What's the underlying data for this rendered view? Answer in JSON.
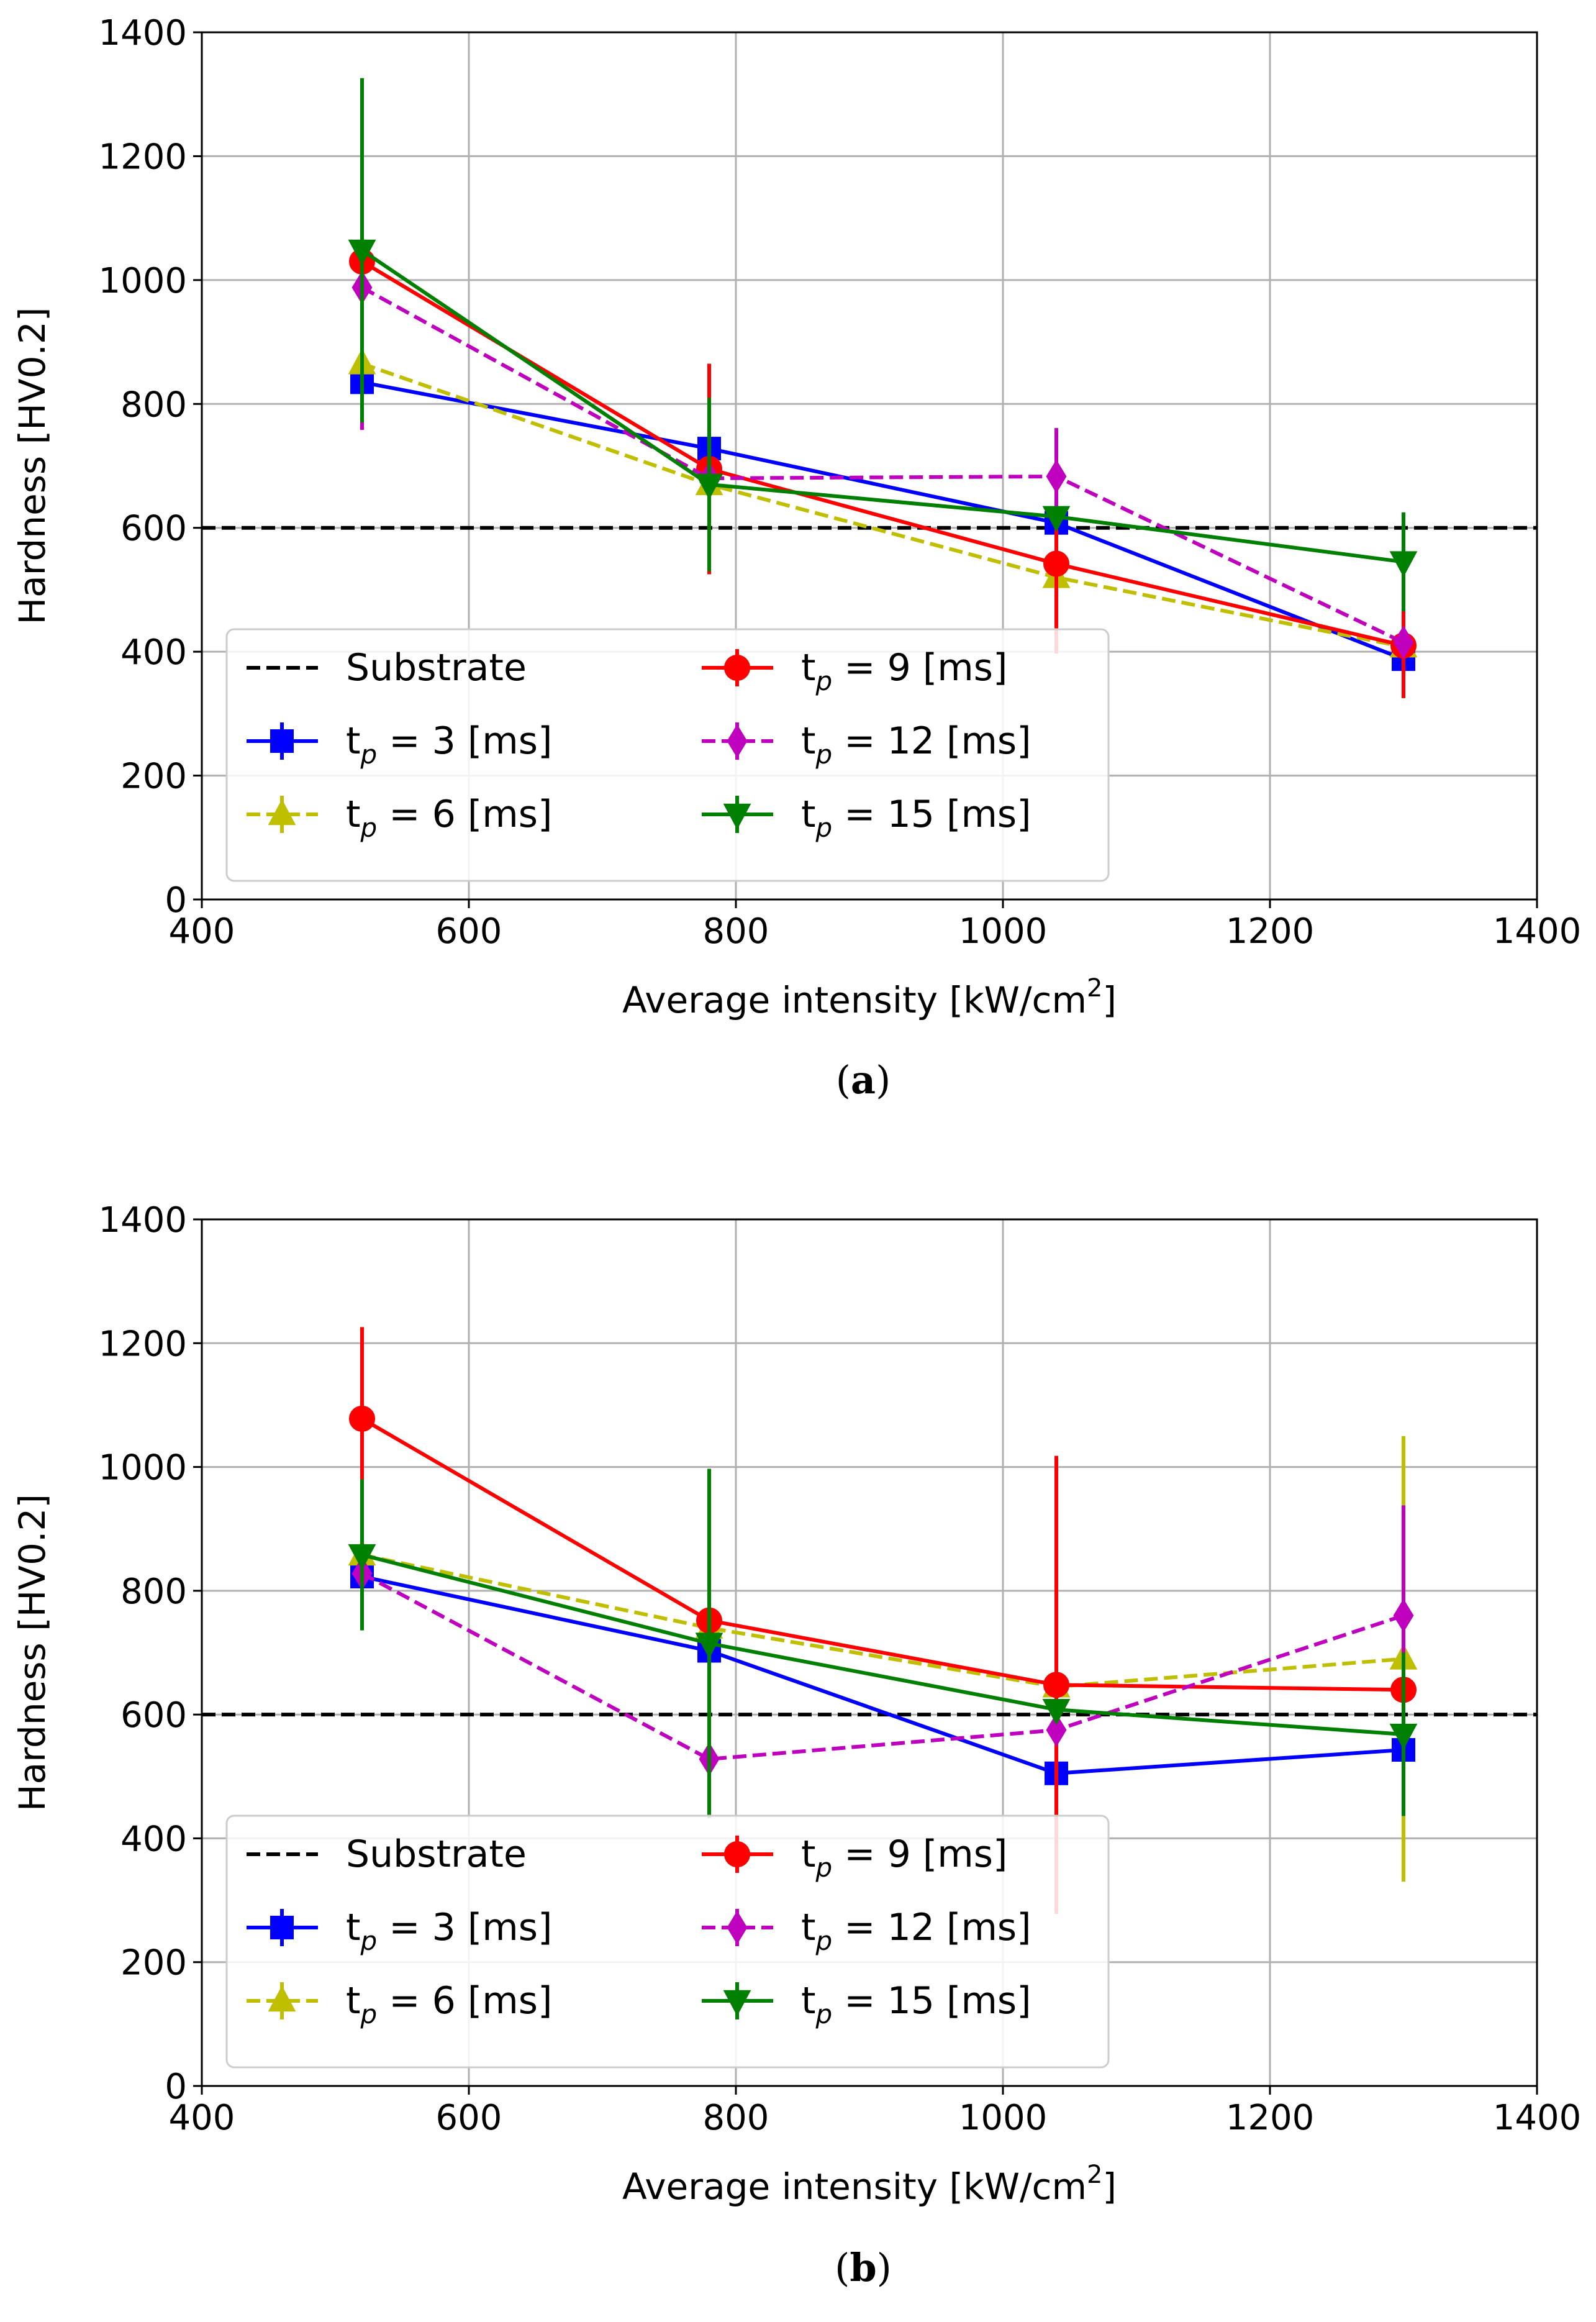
{
  "chart_data": [
    {
      "type": "line",
      "panel_label": "a",
      "title": "",
      "xlabel": "Average intensity [kW/cm",
      "xlabel_sup": "2",
      "xlabel_end": "]",
      "ylabel": "Hardness [HV0.2]",
      "xlim": [
        400,
        1400
      ],
      "ylim": [
        0,
        1400
      ],
      "xticks": [
        400,
        600,
        800,
        1000,
        1200,
        1400
      ],
      "yticks": [
        0,
        200,
        400,
        600,
        800,
        1000,
        1200,
        1400
      ],
      "grid": true,
      "legend_position": "lower-left",
      "reference_line": {
        "name": "Substrate",
        "value": 600,
        "color": "#000000",
        "style": "dashed"
      },
      "series": [
        {
          "name": "t",
          "sub": "p",
          "suffix": " = 3 [ms]",
          "color": "#0000ff",
          "marker": "square",
          "dashed": false,
          "x": [
            520,
            780,
            1040,
            1300
          ],
          "y": [
            835,
            728,
            608,
            388
          ],
          "err": [
            0,
            0,
            0,
            0
          ]
        },
        {
          "name": "t",
          "sub": "p",
          "suffix": " = 6 [ms]",
          "color": "#bfbf00",
          "marker": "triangle-up",
          "dashed": true,
          "x": [
            520,
            780,
            1040,
            1300
          ],
          "y": [
            865,
            670,
            520,
            408
          ],
          "err": [
            0,
            0,
            0,
            0
          ]
        },
        {
          "name": "t",
          "sub": "p",
          "suffix": " = 9 [ms]",
          "color": "#ff0000",
          "marker": "circle",
          "dashed": false,
          "x": [
            520,
            780,
            1040,
            1300
          ],
          "y": [
            1030,
            695,
            542,
            410
          ],
          "err": [
            0,
            170,
            145,
            85
          ]
        },
        {
          "name": "t",
          "sub": "p",
          "suffix": " = 12 [ms]",
          "color": "#bf00bf",
          "marker": "diamond",
          "dashed": true,
          "x": [
            520,
            780,
            1040,
            1300
          ],
          "y": [
            988,
            680,
            683,
            415
          ],
          "err": [
            230,
            0,
            78,
            0
          ]
        },
        {
          "name": "t",
          "sub": "p",
          "suffix": " = 15 [ms]",
          "color": "#008000",
          "marker": "triangle-down",
          "dashed": false,
          "x": [
            520,
            780,
            1040,
            1300
          ],
          "y": [
            1048,
            670,
            618,
            545
          ],
          "err": [
            278,
            140,
            0,
            80
          ]
        }
      ]
    },
    {
      "type": "line",
      "panel_label": "b",
      "title": "",
      "xlabel": "Average intensity [kW/cm",
      "xlabel_sup": "2",
      "xlabel_end": "]",
      "ylabel": "Hardness [HV0.2]",
      "xlim": [
        400,
        1400
      ],
      "ylim": [
        0,
        1400
      ],
      "xticks": [
        400,
        600,
        800,
        1000,
        1200,
        1400
      ],
      "yticks": [
        0,
        200,
        400,
        600,
        800,
        1000,
        1200,
        1400
      ],
      "grid": true,
      "legend_position": "lower-left",
      "reference_line": {
        "name": "Substrate",
        "value": 600,
        "color": "#000000",
        "style": "dashed"
      },
      "series": [
        {
          "name": "t",
          "sub": "p",
          "suffix": " = 3 [ms]",
          "color": "#0000ff",
          "marker": "square",
          "dashed": false,
          "x": [
            520,
            780,
            1040,
            1300
          ],
          "y": [
            823,
            703,
            505,
            543
          ],
          "err": [
            0,
            0,
            0,
            0
          ]
        },
        {
          "name": "t",
          "sub": "p",
          "suffix": " = 6 [ms]",
          "color": "#bfbf00",
          "marker": "triangle-up",
          "dashed": true,
          "x": [
            520,
            780,
            1040,
            1300
          ],
          "y": [
            858,
            740,
            645,
            690
          ],
          "err": [
            0,
            250,
            0,
            360
          ]
        },
        {
          "name": "t",
          "sub": "p",
          "suffix": " = 9 [ms]",
          "color": "#ff0000",
          "marker": "circle",
          "dashed": false,
          "x": [
            520,
            780,
            1040,
            1300
          ],
          "y": [
            1078,
            752,
            648,
            640
          ],
          "err": [
            148,
            178,
            370,
            0
          ]
        },
        {
          "name": "t",
          "sub": "p",
          "suffix": " = 12 [ms]",
          "color": "#bf00bf",
          "marker": "diamond",
          "dashed": true,
          "x": [
            520,
            780,
            1040,
            1300
          ],
          "y": [
            828,
            528,
            575,
            760
          ],
          "err": [
            0,
            0,
            0,
            178
          ]
        },
        {
          "name": "t",
          "sub": "p",
          "suffix": " = 15 [ms]",
          "color": "#008000",
          "marker": "triangle-down",
          "dashed": false,
          "x": [
            520,
            780,
            1040,
            1300
          ],
          "y": [
            858,
            715,
            608,
            568
          ],
          "err": [
            122,
            282,
            0,
            132
          ]
        }
      ]
    }
  ]
}
